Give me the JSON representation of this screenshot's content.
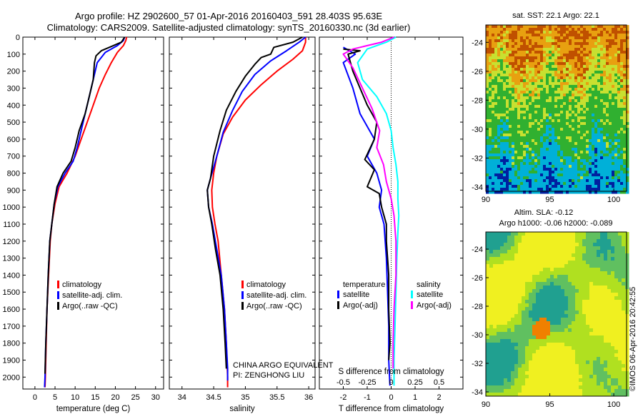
{
  "header": {
    "line1": "Argo profile: HZ 2902600_57 01-Apr-2016 20160403_591 28.403S 95.63E",
    "line2": "Climatology: CARS2009. Satellite-adjusted climatology: synTS_20160330.nc (3d earlier)"
  },
  "footer": {
    "stamp": "©IMOS 06-Apr-2016 20:42:55"
  },
  "colors": {
    "climatology": "#ff0000",
    "satellite_adj": "#0000ff",
    "argo": "#000000",
    "salinity_satellite": "#00ffff",
    "salinity_argo": "#ff00ff"
  },
  "chart_data": [
    {
      "type": "line",
      "xlabel": "temperature (deg C)",
      "ylabel": "",
      "xlim": [
        -3,
        32
      ],
      "ylim": [
        2070,
        0
      ],
      "xticks": [
        0,
        5,
        10,
        15,
        20,
        25,
        30
      ],
      "yticks": [
        0,
        100,
        200,
        300,
        400,
        500,
        600,
        700,
        800,
        900,
        1000,
        1100,
        1200,
        1300,
        1400,
        1500,
        1600,
        1700,
        1800,
        1900,
        2000
      ],
      "legend": [
        "climatology",
        "satellite-adj. clim.",
        "Argo(..raw -QC)"
      ],
      "series": [
        {
          "name": "climatology",
          "color": "#ff0000",
          "points": [
            [
              22.8,
              0
            ],
            [
              22.6,
              20
            ],
            [
              22.0,
              50
            ],
            [
              20.5,
              90
            ],
            [
              19.0,
              150
            ],
            [
              17.5,
              220
            ],
            [
              16.0,
              300
            ],
            [
              14.5,
              400
            ],
            [
              13.0,
              500
            ],
            [
              11.5,
              600
            ],
            [
              10.0,
              700
            ],
            [
              8.0,
              800
            ],
            [
              6.0,
              880
            ],
            [
              5.0,
              980
            ],
            [
              4.2,
              1100
            ],
            [
              3.8,
              1200
            ],
            [
              3.4,
              1400
            ],
            [
              3.0,
              1600
            ],
            [
              2.8,
              1800
            ],
            [
              2.6,
              2000
            ],
            [
              2.5,
              2060
            ]
          ]
        },
        {
          "name": "satellite-adj. clim.",
          "color": "#0000ff",
          "points": [
            [
              22.3,
              0
            ],
            [
              22.0,
              20
            ],
            [
              20.5,
              50
            ],
            [
              17.5,
              90
            ],
            [
              15.5,
              150
            ],
            [
              14.5,
              250
            ],
            [
              13.5,
              350
            ],
            [
              12.5,
              450
            ],
            [
              11.5,
              550
            ],
            [
              10.5,
              650
            ],
            [
              9.5,
              730
            ],
            [
              7.5,
              800
            ],
            [
              5.7,
              880
            ],
            [
              4.8,
              980
            ],
            [
              4.2,
              1100
            ],
            [
              3.7,
              1200
            ],
            [
              3.3,
              1400
            ],
            [
              3.0,
              1600
            ],
            [
              2.7,
              1800
            ],
            [
              2.5,
              2000
            ],
            [
              2.4,
              2060
            ]
          ]
        },
        {
          "name": "Argo(..raw -QC)",
          "color": "#000000",
          "points": [
            [
              22.3,
              0
            ],
            [
              21.5,
              30
            ],
            [
              19.5,
              50
            ],
            [
              16.5,
              80
            ],
            [
              15.2,
              110
            ],
            [
              14.8,
              150
            ],
            [
              14.5,
              250
            ],
            [
              13.5,
              350
            ],
            [
              12.5,
              450
            ],
            [
              11.0,
              550
            ],
            [
              10.0,
              650
            ],
            [
              9.0,
              730
            ],
            [
              7.0,
              800
            ],
            [
              5.5,
              880
            ],
            [
              4.8,
              980
            ],
            [
              4.2,
              1100
            ],
            [
              3.7,
              1200
            ],
            [
              3.3,
              1400
            ],
            [
              3.0,
              1600
            ],
            [
              2.7,
              1800
            ],
            [
              2.5,
              1980
            ]
          ]
        }
      ]
    },
    {
      "type": "line",
      "xlabel": "salinity",
      "ylabel": "",
      "xlim": [
        33.8,
        36.1
      ],
      "ylim": [
        2070,
        0
      ],
      "xticks": [
        34,
        34.5,
        35,
        35.5,
        36
      ],
      "xticklabels": [
        "34",
        "34.5",
        "35",
        "35.5",
        "36"
      ],
      "legend": [
        "climatology",
        "satellite-adj. clim.",
        "Argo(..raw -QC)"
      ],
      "annotations": [
        "CHINA ARGO EQUIVALENT",
        "PI: ZENGHONG LIU"
      ],
      "series": [
        {
          "name": "climatology",
          "color": "#ff0000",
          "points": [
            [
              35.95,
              0
            ],
            [
              35.95,
              30
            ],
            [
              35.9,
              80
            ],
            [
              35.75,
              130
            ],
            [
              35.5,
              200
            ],
            [
              35.25,
              280
            ],
            [
              35.0,
              370
            ],
            [
              34.8,
              470
            ],
            [
              34.65,
              570
            ],
            [
              34.55,
              700
            ],
            [
              34.5,
              800
            ],
            [
              34.47,
              900
            ],
            [
              34.48,
              1000
            ],
            [
              34.52,
              1100
            ],
            [
              34.57,
              1200
            ],
            [
              34.62,
              1400
            ],
            [
              34.67,
              1600
            ],
            [
              34.7,
              1800
            ],
            [
              34.72,
              2000
            ],
            [
              34.72,
              2060
            ]
          ]
        },
        {
          "name": "satellite-adj. clim.",
          "color": "#0000ff",
          "points": [
            [
              35.95,
              0
            ],
            [
              35.85,
              30
            ],
            [
              35.65,
              80
            ],
            [
              35.4,
              140
            ],
            [
              35.15,
              220
            ],
            [
              34.95,
              320
            ],
            [
              34.8,
              430
            ],
            [
              34.65,
              560
            ],
            [
              34.55,
              700
            ],
            [
              34.45,
              830
            ],
            [
              34.4,
              900
            ],
            [
              34.42,
              1000
            ],
            [
              34.48,
              1100
            ],
            [
              34.55,
              1250
            ],
            [
              34.62,
              1400
            ],
            [
              34.67,
              1600
            ],
            [
              34.7,
              1800
            ],
            [
              34.72,
              1950
            ],
            [
              34.72,
              2020
            ]
          ]
        },
        {
          "name": "Argo(..raw -QC)",
          "color": "#000000",
          "points": [
            [
              35.9,
              0
            ],
            [
              35.75,
              30
            ],
            [
              35.45,
              60
            ],
            [
              35.4,
              100
            ],
            [
              35.25,
              120
            ],
            [
              35.15,
              160
            ],
            [
              35.0,
              230
            ],
            [
              34.85,
              320
            ],
            [
              34.7,
              430
            ],
            [
              34.6,
              550
            ],
            [
              34.5,
              700
            ],
            [
              34.45,
              830
            ],
            [
              34.4,
              900
            ],
            [
              34.42,
              1000
            ],
            [
              34.47,
              1100
            ],
            [
              34.53,
              1250
            ],
            [
              34.6,
              1400
            ],
            [
              34.65,
              1600
            ],
            [
              34.68,
              1800
            ],
            [
              34.7,
              1950
            ]
          ]
        }
      ]
    },
    {
      "type": "line",
      "xlabel": "T difference from climatology",
      "x2label": "S difference from climatology",
      "ylabel": "",
      "xlim": [
        -3,
        3
      ],
      "ylim": [
        2070,
        0
      ],
      "xticks": [
        -2,
        -1,
        0,
        1,
        2
      ],
      "x2lim": [
        -0.75,
        0.75
      ],
      "x2ticks": [
        -0.5,
        -0.25,
        0,
        0.25,
        0.5
      ],
      "legend_headers": [
        "temperature",
        "salinity"
      ],
      "legend": [
        "satellite",
        "Argo(-adj)",
        "satellite",
        "Argo(-adj)"
      ],
      "series": [
        {
          "name": "satellite",
          "color": "#0000ff",
          "points": [
            [
              -2.0,
              60
            ],
            [
              -1.5,
              100
            ],
            [
              -2.0,
              150
            ],
            [
              -1.6,
              300
            ],
            [
              -1.3,
              450
            ],
            [
              -0.7,
              600
            ],
            [
              -1.0,
              700
            ],
            [
              -0.6,
              800
            ],
            [
              -0.4,
              900
            ],
            [
              -0.5,
              1000
            ],
            [
              -0.3,
              1100
            ],
            [
              -0.2,
              1300
            ],
            [
              -0.15,
              1500
            ],
            [
              -0.1,
              1700
            ],
            [
              -0.1,
              1900
            ],
            [
              -0.05,
              2050
            ]
          ]
        },
        {
          "name": "Argo(-adj)",
          "color": "#000000",
          "points": [
            [
              -2.0,
              70
            ],
            [
              -1.3,
              80
            ],
            [
              -1.8,
              100
            ],
            [
              -1.6,
              200
            ],
            [
              -1.3,
              300
            ],
            [
              -1.0,
              400
            ],
            [
              -0.6,
              500
            ],
            [
              -0.7,
              600
            ],
            [
              -1.1,
              720
            ],
            [
              -0.7,
              780
            ],
            [
              -1.0,
              880
            ],
            [
              -0.5,
              920
            ],
            [
              -0.4,
              1000
            ],
            [
              -0.2,
              1100
            ],
            [
              -0.2,
              1200
            ],
            [
              -0.1,
              1400
            ],
            [
              -0.1,
              1600
            ],
            [
              -0.05,
              1800
            ],
            [
              -0.1,
              1900
            ]
          ]
        },
        {
          "name": "satellite",
          "color": "#00ffff",
          "axis": "x2",
          "points": [
            [
              0.05,
              0
            ],
            [
              -0.05,
              30
            ],
            [
              -0.25,
              70
            ],
            [
              -0.35,
              150
            ],
            [
              -0.3,
              250
            ],
            [
              -0.15,
              350
            ],
            [
              -0.05,
              450
            ],
            [
              0.0,
              550
            ],
            [
              0.02,
              650
            ],
            [
              0.05,
              750
            ],
            [
              0.07,
              850
            ],
            [
              0.07,
              950
            ],
            [
              0.08,
              1050
            ],
            [
              0.07,
              1150
            ],
            [
              0.06,
              1300
            ],
            [
              0.05,
              1500
            ],
            [
              0.04,
              1700
            ],
            [
              0.03,
              1900
            ],
            [
              0.03,
              2050
            ]
          ]
        },
        {
          "name": "Argo(-adj)",
          "color": "#ff00ff",
          "axis": "x2",
          "points": [
            [
              0.03,
              0
            ],
            [
              -0.1,
              30
            ],
            [
              -0.4,
              70
            ],
            [
              -0.5,
              100
            ],
            [
              -0.4,
              180
            ],
            [
              -0.3,
              300
            ],
            [
              -0.2,
              420
            ],
            [
              -0.12,
              550
            ],
            [
              -0.15,
              650
            ],
            [
              -0.08,
              750
            ],
            [
              -0.05,
              850
            ],
            [
              0.0,
              950
            ],
            [
              0.03,
              1050
            ],
            [
              0.05,
              1200
            ],
            [
              0.05,
              1400
            ],
            [
              0.03,
              1600
            ],
            [
              0.02,
              1800
            ],
            [
              0.02,
              1950
            ]
          ]
        }
      ]
    },
    {
      "type": "heatmap",
      "title": "sat. SST: 22.1  Argo: 22.1",
      "xlim": [
        90,
        101
      ],
      "ylim": [
        -34.3,
        -22.8
      ],
      "xticks": [
        90,
        95,
        100
      ],
      "yticks": [
        -24,
        -26,
        -28,
        -30,
        -32,
        -34
      ],
      "colors": [
        "#c05000",
        "#e8a010",
        "#c8e030",
        "#30b030",
        "#00b0d8",
        "#0020a0"
      ]
    },
    {
      "type": "heatmap",
      "title": "Altim. SLA: -0.12",
      "subtitle": "Argo h1000: -0.06 h2000: -0.089",
      "xlim": [
        90,
        101
      ],
      "ylim": [
        -34.3,
        -22.8
      ],
      "xticks": [
        90,
        95,
        100
      ],
      "yticks": [
        -24,
        -26,
        -28,
        -30,
        -32,
        -34
      ],
      "colors": [
        "#f0f020",
        "#b0e020",
        "#60c060",
        "#20a090",
        "#f08000"
      ]
    }
  ]
}
